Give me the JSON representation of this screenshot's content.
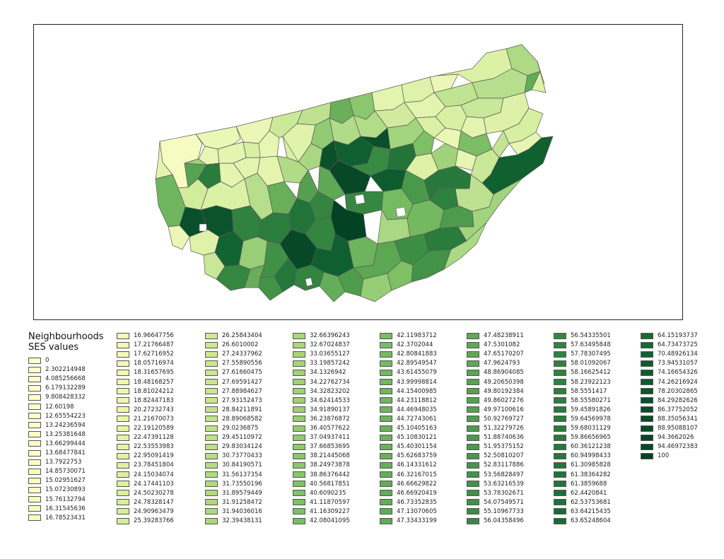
{
  "legend": {
    "title_line1": "Neighbourhoods",
    "title_line2": "SES values",
    "columns": [
      {
        "entries": [
          {
            "label": "0",
            "color": "#ffffcc"
          },
          {
            "label": "2.302214948",
            "color": "#ffffcc"
          },
          {
            "label": "4.085256668",
            "color": "#ffffcc"
          },
          {
            "label": "6.179132289",
            "color": "#ffffcc"
          },
          {
            "label": "9.808428332",
            "color": "#ffffcc"
          },
          {
            "label": "12.60198",
            "color": "#fcfec8"
          },
          {
            "label": "12.65554223",
            "color": "#fcfec8"
          },
          {
            "label": "13.24236594",
            "color": "#fcfec8"
          },
          {
            "label": "13.25381648",
            "color": "#fcfec8"
          },
          {
            "label": "13.66299444",
            "color": "#fbfdc5"
          },
          {
            "label": "13.68477841",
            "color": "#fbfdc5"
          },
          {
            "label": "13.7922753",
            "color": "#fbfdc5"
          },
          {
            "label": "14.85730071",
            "color": "#f9fcc1"
          },
          {
            "label": "15.02951627",
            "color": "#f9fcc1"
          },
          {
            "label": "15.07230893",
            "color": "#f9fcc1"
          },
          {
            "label": "15.76132794",
            "color": "#f7fbbd"
          },
          {
            "label": "16.31545636",
            "color": "#f7fbbd"
          },
          {
            "label": "16.78523431",
            "color": "#f7fbbd"
          }
        ]
      },
      {
        "entries": [
          {
            "label": "16.96647756",
            "color": "#f5fab9"
          },
          {
            "label": "17.21766487",
            "color": "#f5fab9"
          },
          {
            "label": "17.62716952",
            "color": "#f4f9b6"
          },
          {
            "label": "18.05716974",
            "color": "#f2f8b3"
          },
          {
            "label": "18.31657695",
            "color": "#f1f8b1"
          },
          {
            "label": "18.48168257",
            "color": "#f0f7af"
          },
          {
            "label": "18.81024212",
            "color": "#eef6ad"
          },
          {
            "label": "18.82447183",
            "color": "#eef6ad"
          },
          {
            "label": "20.27232743",
            "color": "#ecf5aa"
          },
          {
            "label": "21.21670073",
            "color": "#e9f4a7"
          },
          {
            "label": "22.19120589",
            "color": "#e7f3a5"
          },
          {
            "label": "22.47391128",
            "color": "#e5f2a3"
          },
          {
            "label": "22.53553983",
            "color": "#e5f2a3"
          },
          {
            "label": "22.95091419",
            "color": "#e3f1a1"
          },
          {
            "label": "23.78451804",
            "color": "#e0f09e"
          },
          {
            "label": "24.15034074",
            "color": "#def09c"
          },
          {
            "label": "24.17441103",
            "color": "#def09c"
          },
          {
            "label": "24.50230278",
            "color": "#dcef9a"
          },
          {
            "label": "24.78328147",
            "color": "#daee98"
          },
          {
            "label": "24.90963479",
            "color": "#d9ee97"
          },
          {
            "label": "25.39283766",
            "color": "#d6ec95"
          }
        ]
      },
      {
        "entries": [
          {
            "label": "26.25843404",
            "color": "#d2ea92"
          },
          {
            "label": "26.6010002",
            "color": "#d0e991"
          },
          {
            "label": "27.24337962",
            "color": "#cde88f"
          },
          {
            "label": "27.55890556",
            "color": "#cbe78e"
          },
          {
            "label": "27.61660475",
            "color": "#cae78d"
          },
          {
            "label": "27.69591427",
            "color": "#c9e68c"
          },
          {
            "label": "27.88984627",
            "color": "#c8e68b"
          },
          {
            "label": "27.93152473",
            "color": "#c7e58b"
          },
          {
            "label": "28.84211891",
            "color": "#c2e388"
          },
          {
            "label": "28.89068582",
            "color": "#c1e387"
          },
          {
            "label": "29.0236875",
            "color": "#c0e286"
          },
          {
            "label": "29.45110972",
            "color": "#bde185"
          },
          {
            "label": "29.83034124",
            "color": "#bbe083"
          },
          {
            "label": "30.73770433",
            "color": "#b6de81"
          },
          {
            "label": "30.84190571",
            "color": "#b5dd80"
          },
          {
            "label": "31.56137354",
            "color": "#b1db7e"
          },
          {
            "label": "31.73550196",
            "color": "#b0db7d"
          },
          {
            "label": "31.89579449",
            "color": "#afda7c"
          },
          {
            "label": "31.91258472",
            "color": "#afda7c"
          },
          {
            "label": "31.94036016",
            "color": "#aeda7c"
          },
          {
            "label": "32.39438131",
            "color": "#abd87a"
          }
        ]
      },
      {
        "entries": [
          {
            "label": "32.66396243",
            "color": "#a9d779"
          },
          {
            "label": "32.67024837",
            "color": "#a9d779"
          },
          {
            "label": "33.03655127",
            "color": "#a7d678"
          },
          {
            "label": "33.19857242",
            "color": "#a6d577"
          },
          {
            "label": "34.1326942",
            "color": "#a1d374"
          },
          {
            "label": "34.22762734",
            "color": "#a0d274"
          },
          {
            "label": "34.32823202",
            "color": "#a0d273"
          },
          {
            "label": "34.62414533",
            "color": "#9ed172"
          },
          {
            "label": "34.91890137",
            "color": "#9cd071"
          },
          {
            "label": "36.23876872",
            "color": "#95cd6e"
          },
          {
            "label": "36.40577622",
            "color": "#94cc6d"
          },
          {
            "label": "37.04937411",
            "color": "#91cb6c"
          },
          {
            "label": "37.66853695",
            "color": "#8ec96b"
          },
          {
            "label": "38.21445068",
            "color": "#8bc86a"
          },
          {
            "label": "38.24973878",
            "color": "#8bc86a"
          },
          {
            "label": "38.86376442",
            "color": "#88c669"
          },
          {
            "label": "40.56817851",
            "color": "#80c266"
          },
          {
            "label": "40.6090235",
            "color": "#80c266"
          },
          {
            "label": "41.11870597",
            "color": "#7ec065"
          },
          {
            "label": "41.16309227",
            "color": "#7ec065"
          },
          {
            "label": "42.08041095",
            "color": "#79bd63"
          }
        ]
      },
      {
        "entries": [
          {
            "label": "42.11983712",
            "color": "#79bd63"
          },
          {
            "label": "42.3702044",
            "color": "#77bc62"
          },
          {
            "label": "42.80841883",
            "color": "#75bb61"
          },
          {
            "label": "42.89549547",
            "color": "#75ba61"
          },
          {
            "label": "43.61455079",
            "color": "#71b85f"
          },
          {
            "label": "43.99998814",
            "color": "#70b75e"
          },
          {
            "label": "44.15400985",
            "color": "#6fb65e"
          },
          {
            "label": "44.23118812",
            "color": "#6eb65d"
          },
          {
            "label": "44.46948035",
            "color": "#6db55d"
          },
          {
            "label": "44.72743061",
            "color": "#6bb45c"
          },
          {
            "label": "45.10405163",
            "color": "#6ab35b"
          },
          {
            "label": "45.10830121",
            "color": "#6ab35b"
          },
          {
            "label": "45.40301154",
            "color": "#68b25b"
          },
          {
            "label": "45.62683759",
            "color": "#67b15a"
          },
          {
            "label": "46.14331612",
            "color": "#65af59"
          },
          {
            "label": "46.32167015",
            "color": "#64af58"
          },
          {
            "label": "46.66629822",
            "color": "#62ad58"
          },
          {
            "label": "46.66920419",
            "color": "#62ad58"
          },
          {
            "label": "46.73352835",
            "color": "#62ad57"
          },
          {
            "label": "47.13070605",
            "color": "#60ab56"
          },
          {
            "label": "47.33433199",
            "color": "#5fab56"
          }
        ]
      },
      {
        "entries": [
          {
            "label": "47.48238911",
            "color": "#5eaa55"
          },
          {
            "label": "47.5301082",
            "color": "#5eaa55"
          },
          {
            "label": "47.65170207",
            "color": "#5da955"
          },
          {
            "label": "47.9624793",
            "color": "#5ca854"
          },
          {
            "label": "48.86904085",
            "color": "#58a652"
          },
          {
            "label": "49.20650398",
            "color": "#56a451"
          },
          {
            "label": "49.80192384",
            "color": "#53a250"
          },
          {
            "label": "49.86027276",
            "color": "#53a250"
          },
          {
            "label": "49.97100616",
            "color": "#52a14f"
          },
          {
            "label": "50.92769727",
            "color": "#4e9e4d"
          },
          {
            "label": "51.32279726",
            "color": "#4c9c4c"
          },
          {
            "label": "51.88740636",
            "color": "#4a9a4b"
          },
          {
            "label": "51.95375152",
            "color": "#499a4b"
          },
          {
            "label": "52.50810207",
            "color": "#47984a"
          },
          {
            "label": "52.83117886",
            "color": "#459649"
          },
          {
            "label": "53.56828497",
            "color": "#429348"
          },
          {
            "label": "53.63216539",
            "color": "#429348"
          },
          {
            "label": "53.78302671",
            "color": "#419247"
          },
          {
            "label": "54.07549571",
            "color": "#409146"
          },
          {
            "label": "55.10967733",
            "color": "#3b8d44"
          },
          {
            "label": "56.04358496",
            "color": "#378a42"
          }
        ]
      },
      {
        "entries": [
          {
            "label": "56.54335501",
            "color": "#358842"
          },
          {
            "label": "57.63495848",
            "color": "#318440"
          },
          {
            "label": "57.78307495",
            "color": "#30833f"
          },
          {
            "label": "58.01092067",
            "color": "#2f823f"
          },
          {
            "label": "58.16625412",
            "color": "#2e823e"
          },
          {
            "label": "58.23922123",
            "color": "#2e813e"
          },
          {
            "label": "58.5551417",
            "color": "#2d803d"
          },
          {
            "label": "58.55580271",
            "color": "#2d803d"
          },
          {
            "label": "59.45891826",
            "color": "#297d3c"
          },
          {
            "label": "59.64569978",
            "color": "#287c3b"
          },
          {
            "label": "59.68031129",
            "color": "#287c3b"
          },
          {
            "label": "59.86656965",
            "color": "#277b3b"
          },
          {
            "label": "60.36121238",
            "color": "#25793a"
          },
          {
            "label": "60.94998433",
            "color": "#237739"
          },
          {
            "label": "61.30985828",
            "color": "#217638"
          },
          {
            "label": "61.38364282",
            "color": "#217538"
          },
          {
            "label": "61.3859688",
            "color": "#217538"
          },
          {
            "label": "62.4420841",
            "color": "#1d7136"
          },
          {
            "label": "62.53753681",
            "color": "#1d7136"
          },
          {
            "label": "63.64215435",
            "color": "#196d34"
          },
          {
            "label": "63.65248604",
            "color": "#196d34"
          }
        ]
      },
      {
        "entries": [
          {
            "label": "64.15193737",
            "color": "#176b33"
          },
          {
            "label": "64.73473725",
            "color": "#156932"
          },
          {
            "label": "70.48926134",
            "color": "#0f6030"
          },
          {
            "label": "73.94531057",
            "color": "#0d5c2e"
          },
          {
            "label": "74.16654326",
            "color": "#0d5b2e"
          },
          {
            "label": "74.26216924",
            "color": "#0d5b2e"
          },
          {
            "label": "78.20302865",
            "color": "#0b572c"
          },
          {
            "label": "84.29282626",
            "color": "#09512a"
          },
          {
            "label": "86.37752052",
            "color": "#084f29"
          },
          {
            "label": "88.35056341",
            "color": "#074d28"
          },
          {
            "label": "88.95088107",
            "color": "#074c28"
          },
          {
            "label": "94.3662026",
            "color": "#064726"
          },
          {
            "label": "94.46972383",
            "color": "#064726"
          },
          {
            "label": "100",
            "color": "#044224"
          }
        ]
      }
    ]
  },
  "map": {
    "border_color": "#595959",
    "lake_color": "#ffffff",
    "neighbourhoods": [
      {
        "ses": 6.18
      },
      {
        "ses": 13.66
      },
      {
        "ses": 12.6
      },
      {
        "ses": 15.03
      },
      {
        "ses": 9.81
      },
      {
        "ses": 15.76
      },
      {
        "ses": 27.24
      },
      {
        "ses": 29.45
      },
      {
        "ses": 45.1
      },
      {
        "ses": 38.21
      },
      {
        "ses": 18.05
      },
      {
        "ses": 21.22
      },
      {
        "ses": 12.66
      },
      {
        "ses": 22.95
      },
      {
        "ses": 32.39
      },
      {
        "ses": 29.02
      },
      {
        "ses": 30.74
      },
      {
        "ses": 46.67
      },
      {
        "ses": 27.56
      },
      {
        "ses": 18.31
      },
      {
        "ses": 26.6
      },
      {
        "ses": 31.56
      },
      {
        "ses": 31.74
      },
      {
        "ses": 37.05
      },
      {
        "ses": 74.17
      },
      {
        "ses": 88.95
      },
      {
        "ses": 86.38
      },
      {
        "ses": 34.13
      },
      {
        "ses": 24.5
      },
      {
        "ses": 40.57
      },
      {
        "ses": 56.54
      },
      {
        "ses": 64.15
      },
      {
        "ses": 78.2
      },
      {
        "ses": 94.47
      },
      {
        "ses": 57.64
      },
      {
        "ses": 22.54
      },
      {
        "ses": 51.95
      },
      {
        "ses": 42.37
      },
      {
        "ses": 47.48
      },
      {
        "ses": 33.04
      },
      {
        "ses": 20.27
      },
      {
        "ses": 31.89
      },
      {
        "ses": 49.86
      },
      {
        "ses": 58.17
      },
      {
        "ses": 100
      },
      {
        "ses": 16.97
      },
      {
        "ses": 18.81
      },
      {
        "ses": 17.22
      },
      {
        "ses": 13.24
      },
      {
        "ses": 26.26
      },
      {
        "ses": 45.4
      },
      {
        "ses": 64.73
      },
      {
        "ses": 88.35
      },
      {
        "ses": 84.29
      },
      {
        "ses": 59.46
      },
      {
        "ses": 23.78
      },
      {
        "ses": 30.84
      },
      {
        "ses": 60.95
      },
      {
        "ses": 70.49
      },
      {
        "ses": 36.24
      },
      {
        "ses": 54.08
      },
      {
        "ses": 94.37
      },
      {
        "ses": 58.24
      },
      {
        "ses": 44.23
      },
      {
        "ses": 74.26
      },
      {
        "ses": 47.96
      },
      {
        "ses": 33.2
      },
      {
        "ses": 42.9
      },
      {
        "ses": 55.11
      },
      {
        "ses": 61.31
      },
      {
        "ses": 51.32
      },
      {
        "ses": 59.87
      },
      {
        "ses": 62.44
      },
      {
        "ses": 34.92
      },
      {
        "ses": 13.79
      },
      {
        "ses": 24.91
      },
      {
        "ses": 18.48
      },
      {
        "ses": 41.12
      },
      {
        "ses": 22.19
      },
      {
        "ses": 25.39
      },
      {
        "ses": 28.84
      },
      {
        "ses": 15.07
      },
      {
        "ses": 27.7
      },
      {
        "ses": 16.32
      },
      {
        "ses": 22.47
      },
      {
        "ses": 14.86
      },
      {
        "ses": 73.95
      },
      {
        "ses": 29.83
      },
      {
        "ses": 34.33
      },
      {
        "ses": 24.15
      },
      {
        "ses": 24.78
      },
      {
        "ses": 16.79
      },
      {
        "ses": 17.63
      },
      {
        "ses": 43.61
      },
      {
        "ses": 13.25
      },
      {
        "ses": 21.22
      },
      {
        "ses": 27.93
      },
      {
        "ses": 57.78
      },
      {
        "ses": 45.63
      },
      {
        "ses": 53.57
      },
      {
        "ses": 63.64
      },
      {
        "ses": 58.56
      },
      {
        "ses": 46.14
      },
      {
        "ses": 50.93
      },
      {
        "ses": 36.41
      },
      {
        "ses": 40.61
      },
      {
        "ses": 53.78
      },
      {
        "ses": 32.66
      },
      {
        "ses": 61.39
      },
      {
        "ses": 48.87
      },
      {
        "ses": 34.62
      },
      {
        "ses": 59.65
      },
      {
        "ses": 52.83
      },
      {
        "ses": 41.16
      }
    ]
  }
}
